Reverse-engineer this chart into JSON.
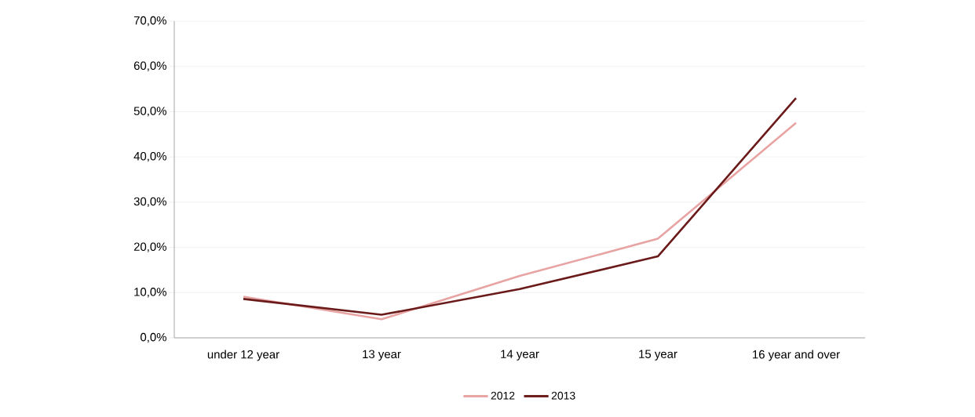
{
  "chart_data": {
    "type": "line",
    "categories": [
      "under 12 year",
      "13 year",
      "14 year",
      "15 year",
      "16 year and over"
    ],
    "series": [
      {
        "name": "2012",
        "color": "#e8a3a3",
        "values": [
          9.1,
          4.1,
          13.7,
          21.9,
          47.5
        ]
      },
      {
        "name": "2013",
        "color": "#6b1a1a",
        "values": [
          8.6,
          5.1,
          10.8,
          18.0,
          53.0
        ]
      }
    ],
    "ylim": [
      0,
      70
    ],
    "yticks": [
      {
        "value": 0,
        "label": "0,0%"
      },
      {
        "value": 10,
        "label": "10,0%"
      },
      {
        "value": 20,
        "label": "20,0%"
      },
      {
        "value": 30,
        "label": "30,0%"
      },
      {
        "value": 40,
        "label": "40,0%"
      },
      {
        "value": 50,
        "label": "50,0%"
      },
      {
        "value": 60,
        "label": "60,0%"
      },
      {
        "value": 70,
        "label": "70,0%"
      }
    ],
    "grid": "y",
    "legend": "bottom"
  }
}
